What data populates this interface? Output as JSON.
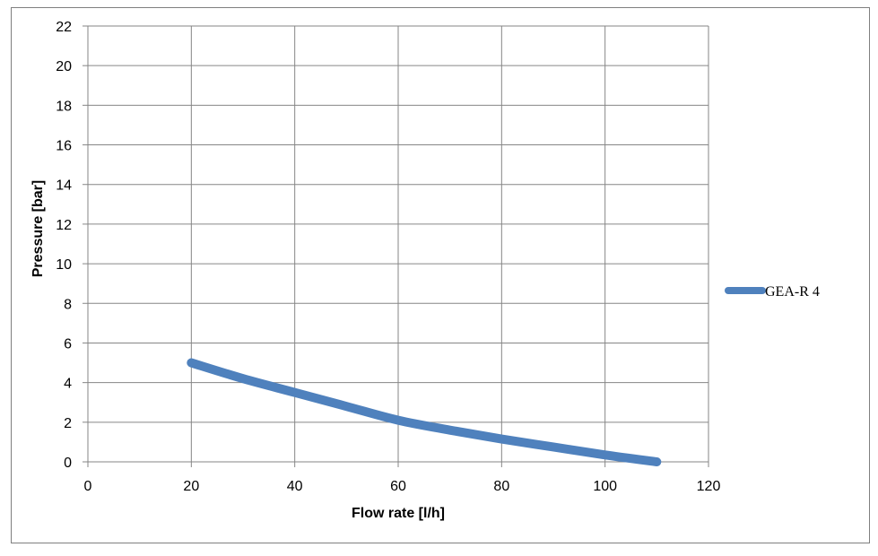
{
  "chart_data": {
    "type": "line",
    "title": "",
    "xlabel": "Flow rate [l/h]",
    "ylabel": "Pressure [bar]",
    "xlim": [
      0,
      120
    ],
    "ylim": [
      0,
      22
    ],
    "xticks": [
      0,
      20,
      40,
      60,
      80,
      100,
      120
    ],
    "yticks": [
      0,
      2,
      4,
      6,
      8,
      10,
      12,
      14,
      16,
      18,
      20,
      22
    ],
    "grid": true,
    "legend_position": "right",
    "series": [
      {
        "name": "GEA-R 4",
        "color": "#4f81bd",
        "x": [
          20,
          30,
          40,
          50,
          60,
          70,
          80,
          90,
          100,
          110
        ],
        "y": [
          5.0,
          4.2,
          3.5,
          2.8,
          2.1,
          1.6,
          1.15,
          0.75,
          0.35,
          0.0
        ]
      }
    ]
  }
}
